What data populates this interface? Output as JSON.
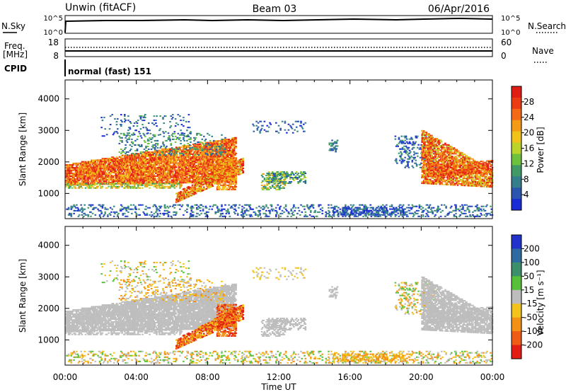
{
  "header": {
    "station": "Unwin (fitACF)",
    "beam": "Beam 03",
    "date": "06/Apr/2016"
  },
  "top_panels": {
    "nsky_label": "N.Sky",
    "nsky_top": "10^5",
    "nsky_bottom": "10^0",
    "nsearch_label": "N.Search",
    "nsearch_top": "10^5",
    "nsearch_bottom": "10^0",
    "freq_label_1": "Freq.",
    "freq_label_2": "[MHz]",
    "freq_top": "18",
    "freq_bottom": "8",
    "nave_label": "Nave",
    "nave_top": "60",
    "nave_bottom": "0",
    "cpid_label": "CPID",
    "cpid_value": "normal (fast) 151"
  },
  "chart_data": [
    {
      "type": "heatmap",
      "name": "power",
      "ylabel": "Slant Range [km]",
      "y_ticks": [
        "1000",
        "2000",
        "3000",
        "4000"
      ],
      "y_tick_values": [
        1000,
        2000,
        3000,
        4000
      ],
      "ylim": [
        200,
        4600
      ],
      "xlim": [
        0,
        24
      ],
      "colorbar_label": "Power [dB]",
      "colorbar_ticks": [
        "4",
        "8",
        "12",
        "16",
        "20",
        "24",
        "28"
      ],
      "colorbar_tick_values": [
        4,
        8,
        12,
        16,
        20,
        24,
        28
      ],
      "colorbar_range": [
        0,
        32
      ],
      "colors": [
        "#1a2cd6",
        "#2a56b0",
        "#357f8c",
        "#3f9a66",
        "#6cc23c",
        "#bcd42a",
        "#f1c21a",
        "#f39a17",
        "#f36a16",
        "#ec3a14",
        "#e11c14"
      ]
    },
    {
      "type": "heatmap",
      "name": "velocity",
      "ylabel": "Slant Range [km]",
      "y_ticks": [
        "1000",
        "2000",
        "3000",
        "4000"
      ],
      "y_tick_values": [
        1000,
        2000,
        3000,
        4000
      ],
      "ylim": [
        200,
        4600
      ],
      "xlim": [
        0,
        24
      ],
      "colorbar_label": "Velocity [m s⁻¹]",
      "colorbar_ticks": [
        "200",
        "100",
        "50",
        "15",
        "-15",
        "-50",
        "-100",
        "-200"
      ],
      "colors": [
        "#2233cc",
        "#2f6aa3",
        "#3b8f6a",
        "#56c03a",
        "#bdbdbd",
        "#f2c31a",
        "#f39016",
        "#ef5a14",
        "#e31c14"
      ]
    }
  ],
  "x_axis": {
    "label": "Time UT",
    "ticks": [
      "00:00",
      "04:00",
      "08:00",
      "12:00",
      "16:00",
      "20:00",
      "00:00"
    ],
    "tick_hours": [
      0,
      4,
      8,
      12,
      16,
      20,
      24
    ]
  }
}
